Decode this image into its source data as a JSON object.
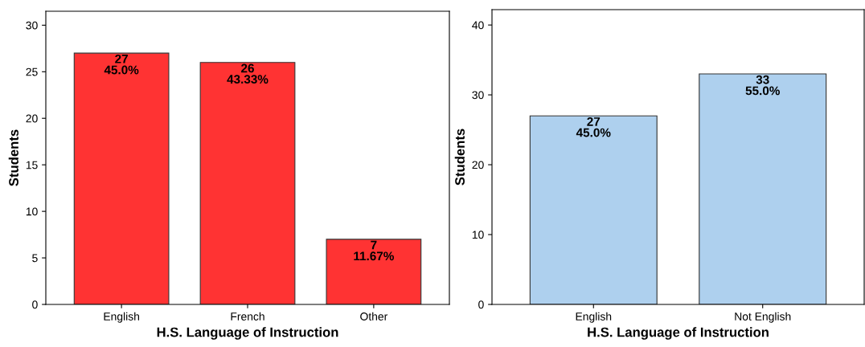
{
  "chart_data": [
    {
      "type": "bar",
      "xlabel": "H.S. Language of Instruction",
      "ylabel": "Students",
      "categories": [
        "English",
        "French",
        "Other"
      ],
      "values": [
        27,
        26,
        7
      ],
      "color": "#ff3333",
      "value_labels": [
        "27\n45.0%",
        "26\n43.33%",
        "7\n11.67%"
      ],
      "ylim": [
        0,
        31.5
      ],
      "yticks": [
        0,
        5,
        10,
        15,
        20,
        25,
        30
      ],
      "grid": false,
      "legend": false
    },
    {
      "type": "bar",
      "xlabel": "H.S. Language of Instruction",
      "ylabel": "Students",
      "categories": [
        "English",
        "Not English"
      ],
      "values": [
        27,
        33
      ],
      "color": "#aed0ee",
      "value_labels": [
        "27\n45.0%",
        "33\n55.0%"
      ],
      "ylim": [
        0,
        42.2
      ],
      "yticks": [
        0,
        10,
        20,
        30,
        40
      ],
      "grid": false,
      "legend": false
    }
  ]
}
